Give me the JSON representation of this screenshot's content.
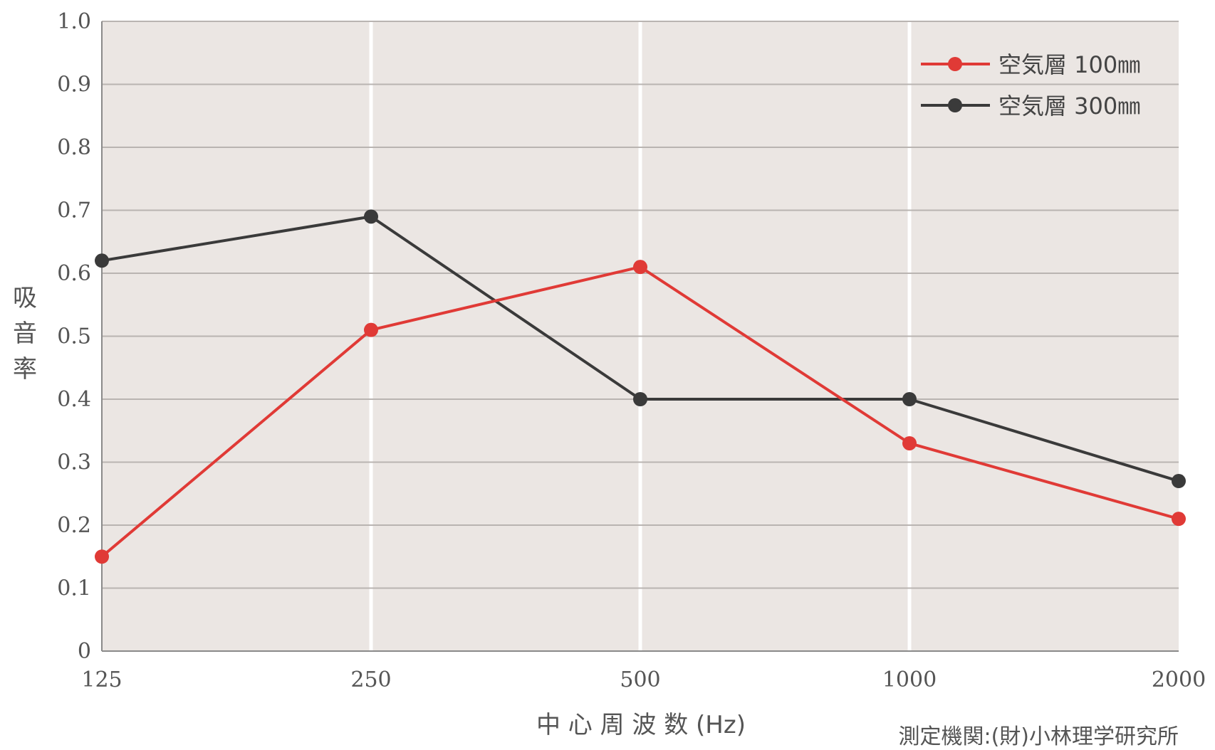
{
  "chart_data": {
    "type": "line",
    "categories": [
      "125",
      "250",
      "500",
      "1000",
      "2000"
    ],
    "series": [
      {
        "name": "空気層 100㎜",
        "color": "#e03a36",
        "values": [
          0.15,
          0.51,
          0.61,
          0.33,
          0.21
        ]
      },
      {
        "name": "空気層 300㎜",
        "color": "#3a3a3a",
        "values": [
          0.62,
          0.69,
          0.4,
          0.4,
          0.27
        ]
      }
    ],
    "xlabel": "中 心 周 波 数 (Hz)",
    "ylabel": "吸音率",
    "ylim": [
      0,
      1.0
    ],
    "yticks": [
      "0",
      "0.1",
      "0.2",
      "0.3",
      "0.4",
      "0.5",
      "0.6",
      "0.7",
      "0.8",
      "0.9",
      "1.0"
    ],
    "grid": true,
    "legend_position": "top-right",
    "note": "測定機関:(財)小林理学研究所"
  }
}
